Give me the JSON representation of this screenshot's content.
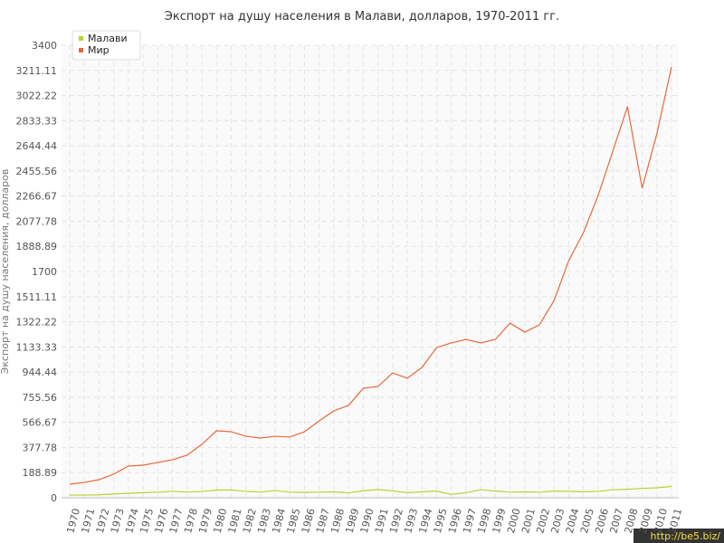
{
  "chart_data": {
    "type": "line",
    "title": "Экспорт на душу населения в Малави, долларов, 1970-2011 гг.",
    "ylabel": "Экспорт на душу населения, долларов",
    "categories": [
      "1970",
      "1971",
      "1972",
      "1973",
      "1974",
      "1975",
      "1976",
      "1977",
      "1978",
      "1979",
      "1980",
      "1981",
      "1982",
      "1983",
      "1984",
      "1985",
      "1986",
      "1987",
      "1988",
      "1989",
      "1990",
      "1991",
      "1992",
      "1993",
      "1994",
      "1995",
      "1996",
      "1997",
      "1998",
      "1999",
      "2000",
      "2001",
      "2002",
      "2003",
      "2004",
      "2005",
      "2006",
      "2007",
      "2008",
      "2009",
      "2010",
      "2011"
    ],
    "series": [
      {
        "name": "Малави",
        "color": "#b5d334",
        "values": [
          20,
          20,
          22,
          28,
          33,
          38,
          42,
          48,
          43,
          47,
          58,
          58,
          48,
          43,
          54,
          42,
          40,
          42,
          44,
          37,
          52,
          62,
          52,
          38,
          44,
          50,
          25,
          38,
          60,
          50,
          42,
          44,
          42,
          50,
          48,
          45,
          48,
          60,
          64,
          70,
          75,
          85
        ]
      },
      {
        "name": "Мир",
        "color": "#e8683a",
        "values": [
          102,
          115,
          136,
          177,
          238,
          245,
          265,
          286,
          320,
          401,
          503,
          496,
          462,
          449,
          462,
          456,
          496,
          578,
          653,
          694,
          823,
          836,
          938,
          898,
          979,
          1129,
          1163,
          1190,
          1163,
          1190,
          1312,
          1244,
          1299,
          1482,
          1782,
          1992,
          2271,
          2604,
          2938,
          2326,
          2734,
          3237
        ]
      }
    ],
    "ylim": [
      0,
      3400
    ],
    "yticks": [
      0,
      188.89,
      377.78,
      566.67,
      755.56,
      944.44,
      1133.33,
      1322.22,
      1511.11,
      1700,
      1888.89,
      2077.78,
      2266.67,
      2455.56,
      2644.44,
      2833.33,
      3022.22,
      3211.11,
      3400
    ],
    "grid": true,
    "legend": "top-left",
    "watermark": "http://be5.biz/"
  }
}
